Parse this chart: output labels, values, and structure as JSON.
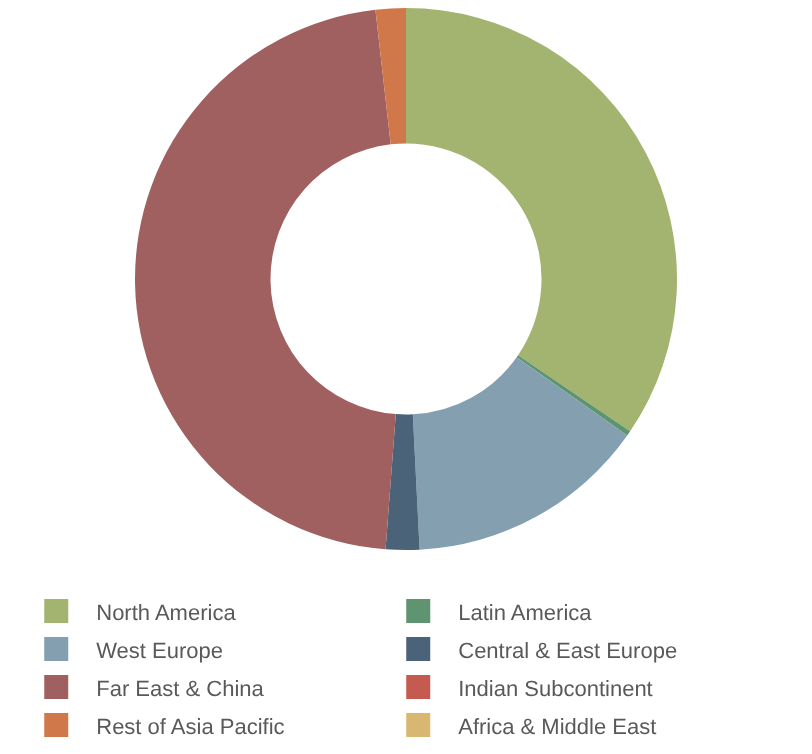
{
  "chart_data": {
    "type": "donut",
    "categories": [
      "North America",
      "Latin America",
      "West Europe",
      "Central & East Europe",
      "Far East & China",
      "Indian Subcontinent",
      "Rest of Asia Pacific",
      "Africa & Middle East"
    ],
    "values": [
      34.5,
      0.3,
      14.4,
      2,
      47,
      0,
      1.8,
      0
    ],
    "colors": [
      "#a2b46f",
      "#5e9470",
      "#84a0b0",
      "#4b6378",
      "#a06060",
      "#c45a50",
      "#d0784a",
      "#d8b870"
    ],
    "legend": "bottom"
  }
}
